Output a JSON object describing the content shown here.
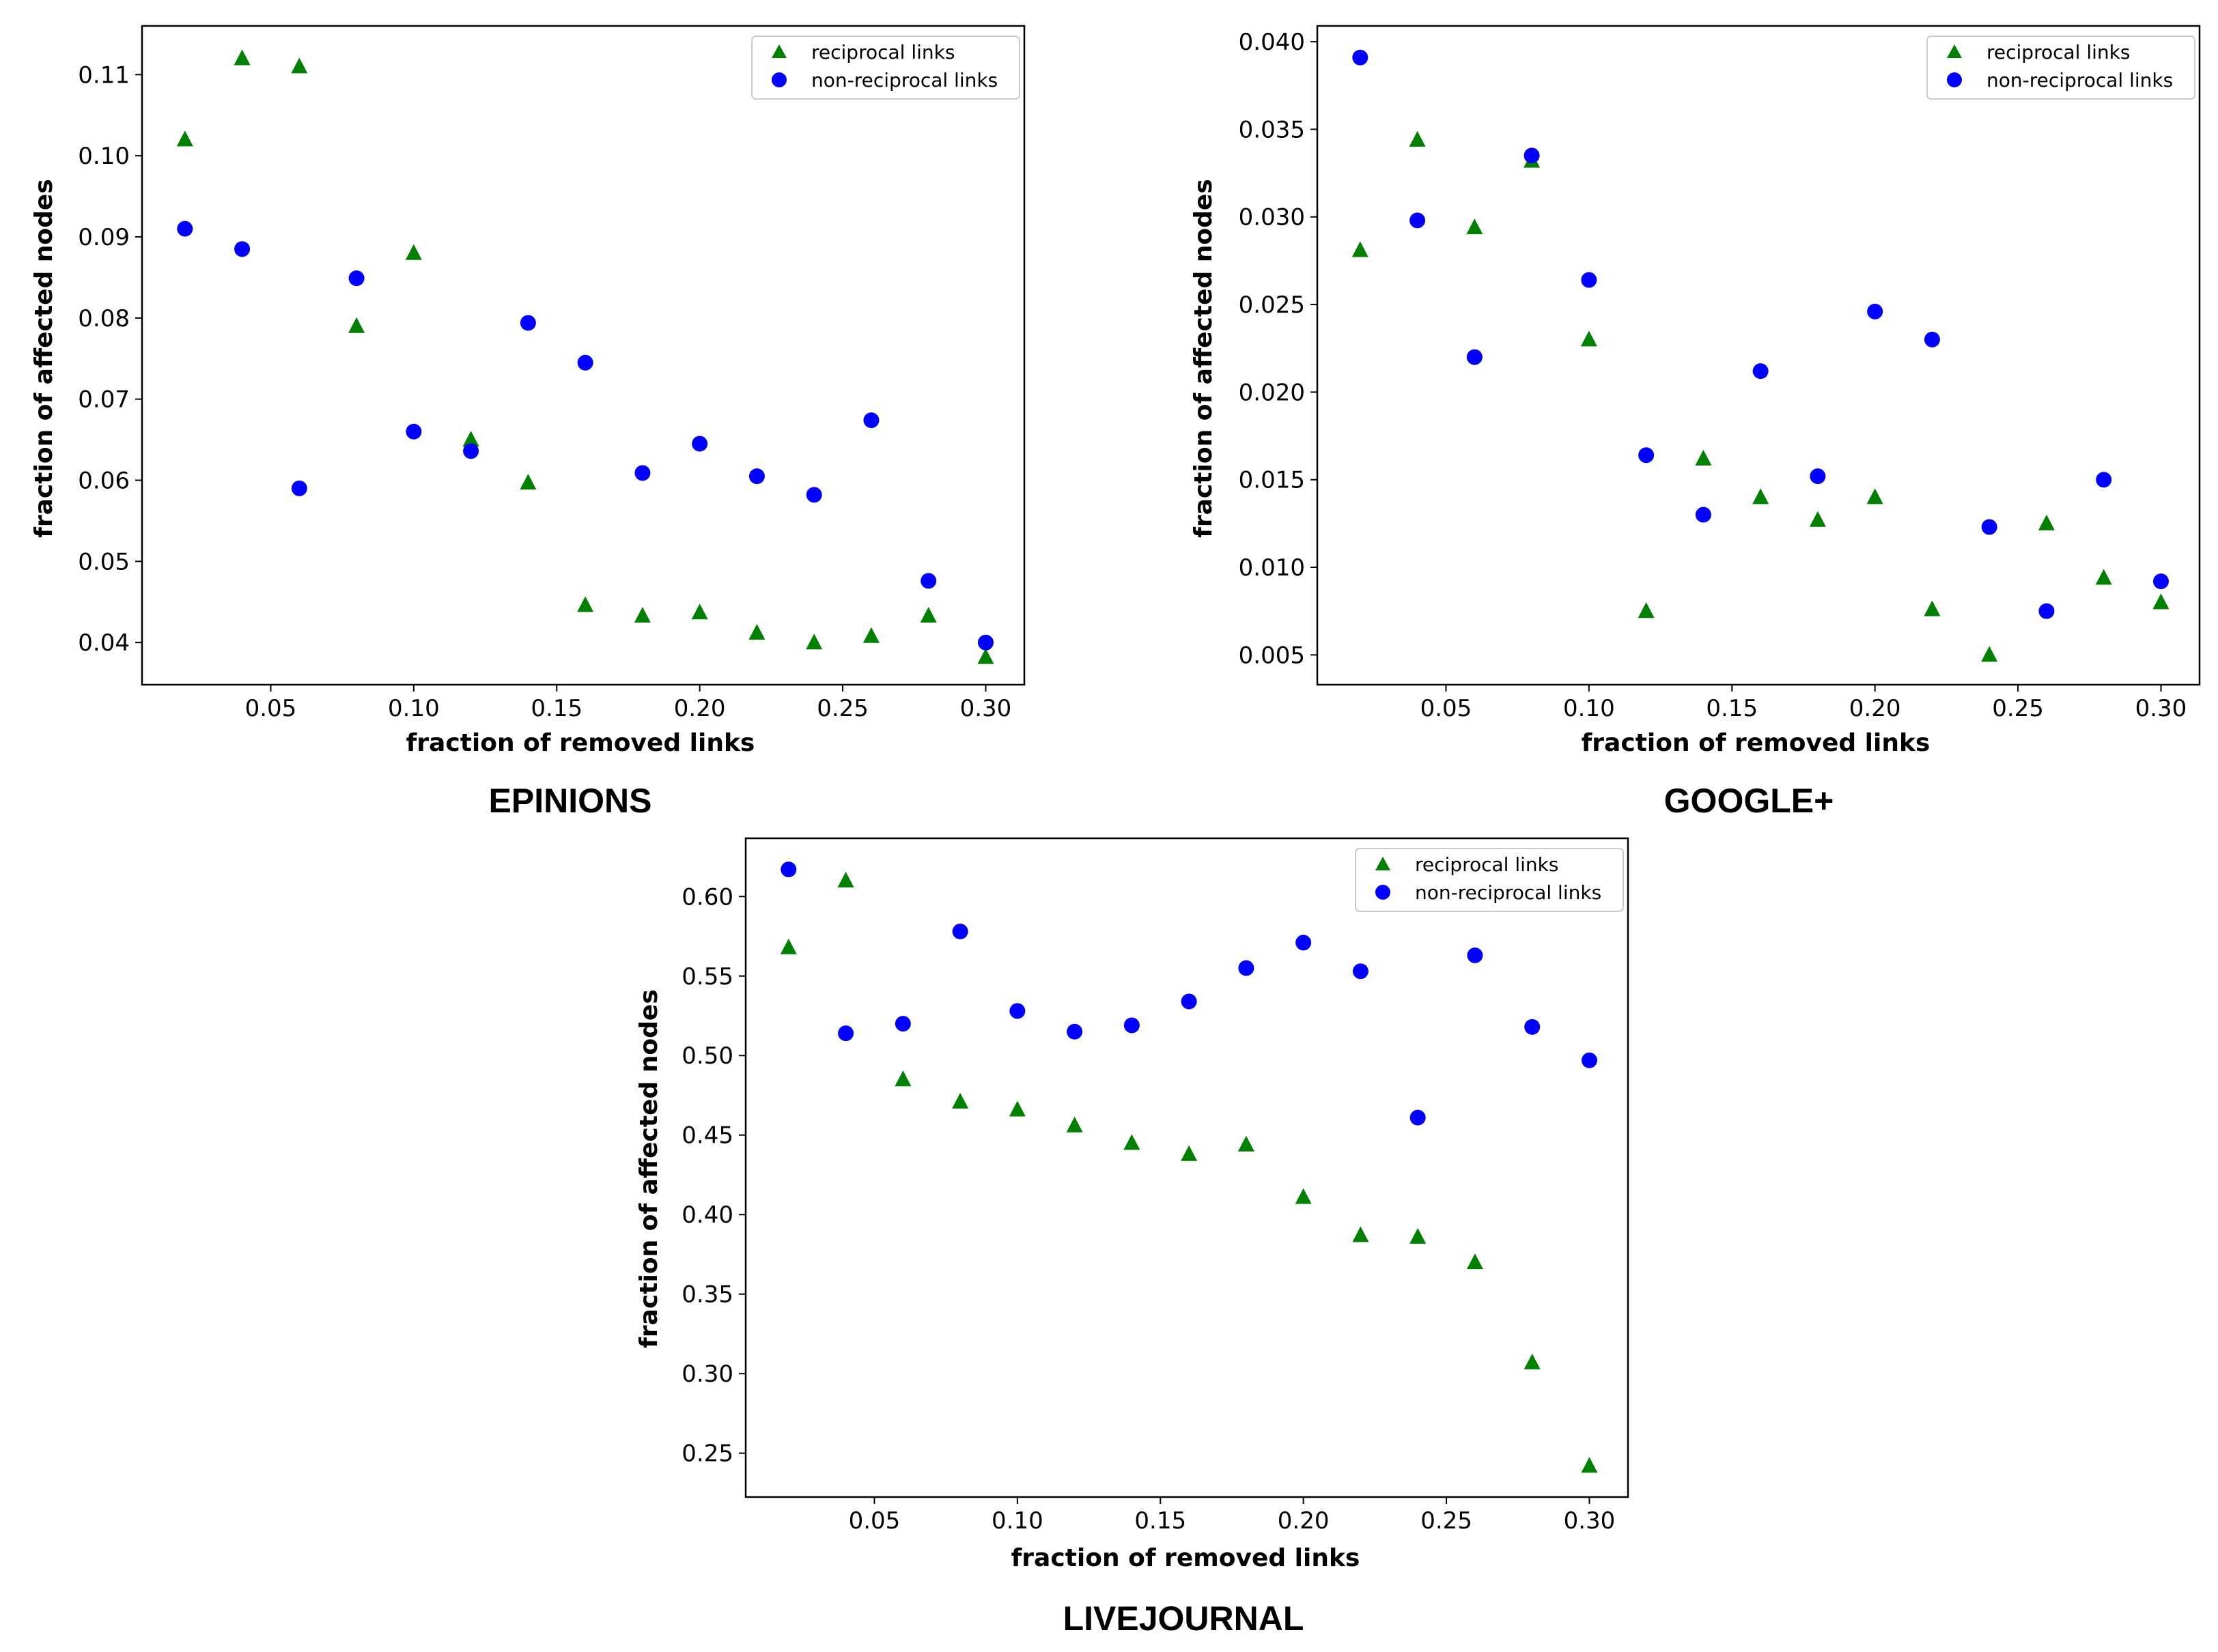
{
  "figure": {
    "background": "#ffffff",
    "reciprocal_color": "#008000",
    "non_reciprocal_color": "#0000ff"
  },
  "chart_data": [
    {
      "type": "scatter",
      "caption": "EPINIONS",
      "xlabel": "fraction of removed links",
      "ylabel": "fraction of affected nodes",
      "xlim": [
        0.005,
        0.3135
      ],
      "ylim": [
        0.0348,
        0.116
      ],
      "xticks": [
        0.05,
        0.1,
        0.15,
        0.2,
        0.25,
        0.3
      ],
      "xtick_labels": [
        "0.05",
        "0.10",
        "0.15",
        "0.20",
        "0.25",
        "0.30"
      ],
      "yticks": [
        0.04,
        0.05,
        0.06,
        0.07,
        0.08,
        0.09,
        0.1,
        0.11
      ],
      "ytick_labels": [
        "0.04",
        "0.05",
        "0.06",
        "0.07",
        "0.08",
        "0.09",
        "0.10",
        "0.11"
      ],
      "legend": [
        "reciprocal links",
        "non-reciprocal links"
      ],
      "series": [
        {
          "name": "reciprocal links",
          "marker": "triangle",
          "color": "#008000",
          "x": [
            0.02,
            0.04,
            0.06,
            0.08,
            0.1,
            0.12,
            0.14,
            0.16,
            0.18,
            0.2,
            0.22,
            0.24,
            0.26,
            0.28,
            0.3
          ],
          "y": [
            0.102,
            0.112,
            0.111,
            0.079,
            0.088,
            0.065,
            0.0597,
            0.0446,
            0.0433,
            0.0437,
            0.0412,
            0.04,
            0.0408,
            0.0433,
            0.0382
          ]
        },
        {
          "name": "non-reciprocal links",
          "marker": "circle",
          "color": "#0000ff",
          "x": [
            0.02,
            0.04,
            0.06,
            0.08,
            0.1,
            0.12,
            0.14,
            0.16,
            0.18,
            0.2,
            0.22,
            0.24,
            0.26,
            0.28,
            0.3
          ],
          "y": [
            0.091,
            0.0885,
            0.059,
            0.0849,
            0.066,
            0.0636,
            0.0794,
            0.0745,
            0.0609,
            0.0645,
            0.0605,
            0.0582,
            0.0674,
            0.0476,
            0.04
          ]
        }
      ]
    },
    {
      "type": "scatter",
      "caption": "GOOGLE+",
      "xlabel": "fraction of removed links",
      "ylabel": "fraction of affected nodes",
      "xlim": [
        0.005,
        0.3135
      ],
      "ylim": [
        0.0033,
        0.0409
      ],
      "xticks": [
        0.05,
        0.1,
        0.15,
        0.2,
        0.25,
        0.3
      ],
      "xtick_labels": [
        "0.05",
        "0.10",
        "0.15",
        "0.20",
        "0.25",
        "0.30"
      ],
      "yticks": [
        0.005,
        0.01,
        0.015,
        0.02,
        0.025,
        0.03,
        0.035,
        0.04
      ],
      "ytick_labels": [
        "0.005",
        "0.010",
        "0.015",
        "0.020",
        "0.025",
        "0.030",
        "0.035",
        "0.040"
      ],
      "legend": [
        "reciprocal links",
        "non-reciprocal links"
      ],
      "series": [
        {
          "name": "reciprocal links",
          "marker": "triangle",
          "color": "#008000",
          "x": [
            0.02,
            0.04,
            0.06,
            0.08,
            0.1,
            0.12,
            0.14,
            0.16,
            0.18,
            0.2,
            0.22,
            0.24,
            0.26,
            0.28,
            0.3
          ],
          "y": [
            0.0281,
            0.0344,
            0.0294,
            0.0332,
            0.023,
            0.0075,
            0.0162,
            0.014,
            0.0127,
            0.014,
            0.0076,
            0.005,
            0.0125,
            0.0094,
            0.008
          ]
        },
        {
          "name": "non-reciprocal links",
          "marker": "circle",
          "color": "#0000ff",
          "x": [
            0.02,
            0.04,
            0.06,
            0.08,
            0.1,
            0.12,
            0.14,
            0.16,
            0.18,
            0.2,
            0.22,
            0.24,
            0.26,
            0.28,
            0.3
          ],
          "y": [
            0.0391,
            0.0298,
            0.022,
            0.0335,
            0.0264,
            0.0164,
            0.013,
            0.0212,
            0.0152,
            0.0246,
            0.023,
            0.0123,
            0.0075,
            0.015,
            0.0092
          ]
        }
      ]
    },
    {
      "type": "scatter",
      "caption": "LIVEJOURNAL",
      "xlabel": "fraction of removed links",
      "ylabel": "fraction of affected nodes",
      "xlim": [
        0.005,
        0.3135
      ],
      "ylim": [
        0.2224,
        0.6366
      ],
      "xticks": [
        0.05,
        0.1,
        0.15,
        0.2,
        0.25,
        0.3
      ],
      "xtick_labels": [
        "0.05",
        "0.10",
        "0.15",
        "0.20",
        "0.25",
        "0.30"
      ],
      "yticks": [
        0.25,
        0.3,
        0.35,
        0.4,
        0.45,
        0.5,
        0.55,
        0.6
      ],
      "ytick_labels": [
        "0.25",
        "0.30",
        "0.35",
        "0.40",
        "0.45",
        "0.50",
        "0.55",
        "0.60"
      ],
      "legend": [
        "reciprocal links",
        "non-reciprocal links"
      ],
      "series": [
        {
          "name": "reciprocal links",
          "marker": "triangle",
          "color": "#008000",
          "x": [
            0.02,
            0.04,
            0.06,
            0.08,
            0.1,
            0.12,
            0.14,
            0.16,
            0.18,
            0.2,
            0.22,
            0.24,
            0.26,
            0.28,
            0.3
          ],
          "y": [
            0.568,
            0.61,
            0.485,
            0.471,
            0.466,
            0.456,
            0.445,
            0.438,
            0.444,
            0.411,
            0.387,
            0.386,
            0.37,
            0.307,
            0.242
          ]
        },
        {
          "name": "non-reciprocal links",
          "marker": "circle",
          "color": "#0000ff",
          "x": [
            0.02,
            0.04,
            0.06,
            0.08,
            0.1,
            0.12,
            0.14,
            0.16,
            0.18,
            0.2,
            0.22,
            0.24,
            0.26,
            0.28,
            0.3
          ],
          "y": [
            0.617,
            0.514,
            0.52,
            0.578,
            0.528,
            0.515,
            0.519,
            0.534,
            0.555,
            0.571,
            0.553,
            0.461,
            0.563,
            0.518,
            0.497
          ]
        }
      ]
    }
  ]
}
